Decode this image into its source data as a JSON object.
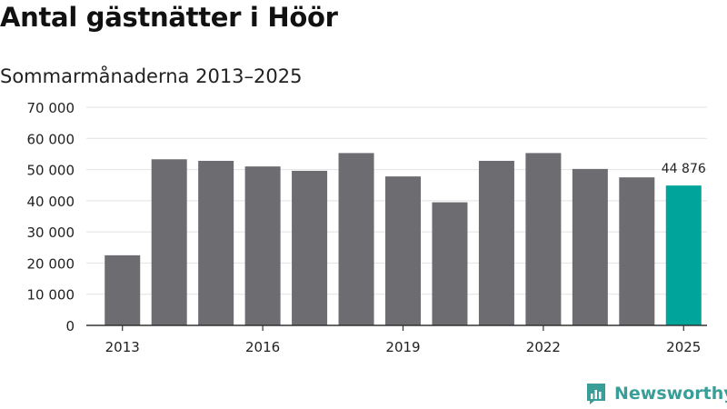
{
  "title": "Antal gästnätter i Höör",
  "subtitle": "Sommarmånaderna 2013–2025",
  "brand": {
    "name": "Newsworthy",
    "icon": "newsworthy-logo-icon"
  },
  "colors": {
    "bar": "#6d6c71",
    "highlight": "#00a49a",
    "grid": "#e2e2e2",
    "axis": "#333333",
    "brand": "#3a9e98"
  },
  "chart_data": {
    "type": "bar",
    "title": "Antal gästnätter i Höör",
    "subtitle": "Sommarmånaderna 2013–2025",
    "categories": [
      "2013",
      "2014",
      "2015",
      "2016",
      "2017",
      "2018",
      "2019",
      "2020",
      "2021",
      "2022",
      "2023",
      "2024",
      "2025"
    ],
    "values": [
      22500,
      53300,
      52800,
      51000,
      49600,
      55300,
      47800,
      39500,
      52800,
      55300,
      50200,
      47500,
      44876
    ],
    "highlight_index": 12,
    "highlight_label": "44 876",
    "ylim": [
      0,
      70000
    ],
    "yticks": [
      0,
      10000,
      20000,
      30000,
      40000,
      50000,
      60000,
      70000
    ],
    "ytick_labels": [
      "0",
      "10 000",
      "20 000",
      "30 000",
      "40 000",
      "50 000",
      "60 000",
      "70 000"
    ],
    "xtick_labels": [
      "2013",
      "2016",
      "2019",
      "2022",
      "2025"
    ],
    "xlabel": "",
    "ylabel": "",
    "grid": true,
    "legend": false
  }
}
